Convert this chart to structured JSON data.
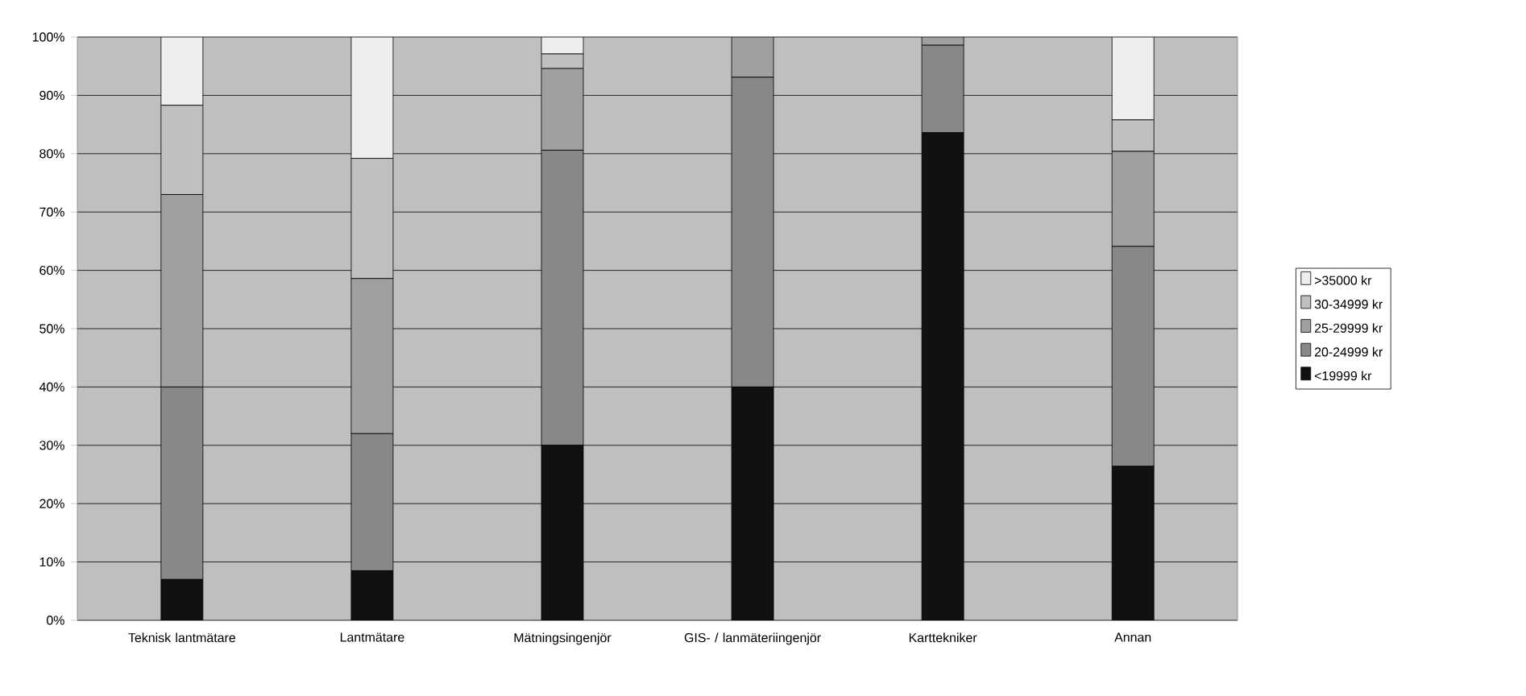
{
  "chart_data": {
    "type": "bar",
    "stacked": true,
    "categories": [
      "Teknisk lantmätare",
      "Lantmätare",
      "Mätningsingenjör",
      "GIS- / lanmäteriingenjör",
      "Karttekniker",
      "Annan"
    ],
    "series": [
      {
        "name": "<19999 kr",
        "color": "#111111",
        "values": [
          7,
          8.5,
          30,
          40,
          83.6,
          26.4
        ]
      },
      {
        "name": "20-24999 kr",
        "color": "#888888",
        "values": [
          33,
          23.5,
          50.6,
          53.1,
          15,
          37.7
        ]
      },
      {
        "name": "25-29999 kr",
        "color": "#a0a0a0",
        "values": [
          33,
          26.6,
          14,
          6.9,
          1.4,
          16.3
        ]
      },
      {
        "name": "30-34999 kr",
        "color": "#c0c0c0",
        "values": [
          15.3,
          20.6,
          2.5,
          0,
          0,
          5.4
        ]
      },
      {
        "name": ">35000 kr",
        "color": "#eeeeee",
        "values": [
          11.7,
          20.8,
          2.9,
          0,
          0,
          14.2
        ]
      }
    ],
    "ylim": [
      0,
      100
    ],
    "yticks": [
      {
        "value": 0,
        "label": "0%"
      },
      {
        "value": 10,
        "label": "10%"
      },
      {
        "value": 20,
        "label": "20%"
      },
      {
        "value": 30,
        "label": "30%"
      },
      {
        "value": 40,
        "label": "40%"
      },
      {
        "value": 50,
        "label": "50%"
      },
      {
        "value": 60,
        "label": "60%"
      },
      {
        "value": 70,
        "label": "70%"
      },
      {
        "value": 80,
        "label": "80%"
      },
      {
        "value": 90,
        "label": "90%"
      },
      {
        "value": 100,
        "label": "100%"
      }
    ],
    "grid": "y",
    "legend": "right"
  }
}
